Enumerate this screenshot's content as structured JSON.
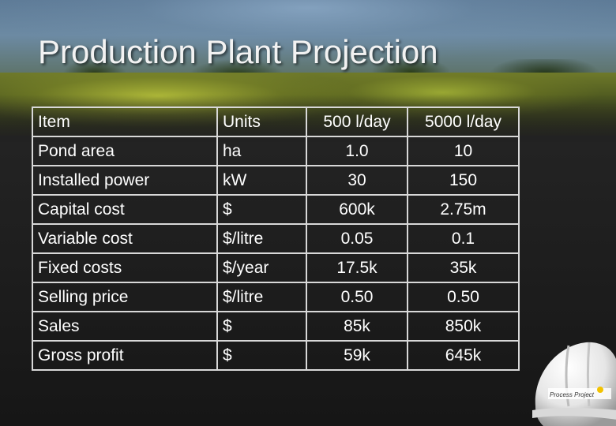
{
  "title": "Production Plant Projection",
  "table": {
    "headers": [
      "Item",
      "Units",
      "500 l/day",
      "5000 l/day"
    ],
    "rows": [
      {
        "item": "Pond area",
        "units": "ha",
        "v500": "1.0",
        "v5000": "10"
      },
      {
        "item": "Installed power",
        "units": "kW",
        "v500": "30",
        "v5000": "150"
      },
      {
        "item": "Capital cost",
        "units": "$",
        "v500": "600k",
        "v5000": "2.75m"
      },
      {
        "item": "Variable cost",
        "units": "$/litre",
        "v500": "0.05",
        "v5000": "0.1"
      },
      {
        "item": "Fixed costs",
        "units": "$/year",
        "v500": "17.5k",
        "v5000": "35k"
      },
      {
        "item": "Selling price",
        "units": "$/litre",
        "v500": "0.50",
        "v5000": "0.50"
      },
      {
        "item": "Sales",
        "units": "$",
        "v500": "85k",
        "v5000": "850k"
      },
      {
        "item": "Gross profit",
        "units": "$",
        "v500": "59k",
        "v5000": "645k"
      }
    ]
  },
  "logo": {
    "icon": "hard-hat-icon",
    "text": "Process Project"
  },
  "colors": {
    "text": "#ffffff",
    "border": "#d8d8d8",
    "background": "#222222"
  }
}
